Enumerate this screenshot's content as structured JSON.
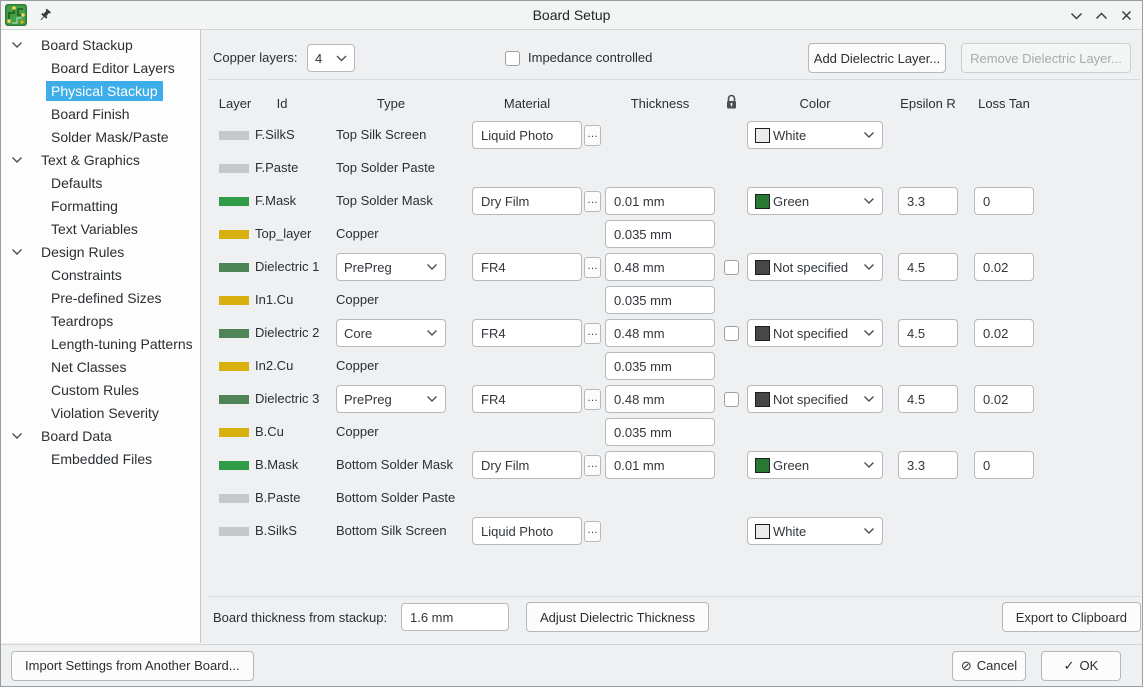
{
  "window": {
    "title": "Board Setup"
  },
  "sidebar": {
    "items": [
      {
        "label": "Board Stackup",
        "level": 0,
        "selected": false
      },
      {
        "label": "Board Editor Layers",
        "level": 1,
        "selected": false
      },
      {
        "label": "Physical Stackup",
        "level": 1,
        "selected": true
      },
      {
        "label": "Board Finish",
        "level": 1,
        "selected": false
      },
      {
        "label": "Solder Mask/Paste",
        "level": 1,
        "selected": false
      },
      {
        "label": "Text & Graphics",
        "level": 0,
        "selected": false
      },
      {
        "label": "Defaults",
        "level": 1,
        "selected": false
      },
      {
        "label": "Formatting",
        "level": 1,
        "selected": false
      },
      {
        "label": "Text Variables",
        "level": 1,
        "selected": false
      },
      {
        "label": "Design Rules",
        "level": 0,
        "selected": false
      },
      {
        "label": "Constraints",
        "level": 1,
        "selected": false
      },
      {
        "label": "Pre-defined Sizes",
        "level": 1,
        "selected": false
      },
      {
        "label": "Teardrops",
        "level": 1,
        "selected": false
      },
      {
        "label": "Length-tuning Patterns",
        "level": 1,
        "selected": false
      },
      {
        "label": "Net Classes",
        "level": 1,
        "selected": false
      },
      {
        "label": "Custom Rules",
        "level": 1,
        "selected": false
      },
      {
        "label": "Violation Severity",
        "level": 1,
        "selected": false
      },
      {
        "label": "Board Data",
        "level": 0,
        "selected": false
      },
      {
        "label": "Embedded Files",
        "level": 1,
        "selected": false
      }
    ]
  },
  "toolbar": {
    "copper_layers_label": "Copper layers:",
    "copper_layers_value": "4",
    "impedance_label": "Impedance controlled",
    "impedance_checked": false,
    "add_button": "Add Dielectric Layer...",
    "remove_button": "Remove Dielectric Layer...",
    "remove_enabled": false
  },
  "table": {
    "headers": {
      "layer": "Layer",
      "id": "Id",
      "type": "Type",
      "material": "Material",
      "thickness": "Thickness",
      "lock": "lock-icon",
      "color": "Color",
      "epsilon": "Epsilon R",
      "loss_tan": "Loss Tan"
    },
    "rows": [
      {
        "id": "F.SilkS",
        "swatch": "silver",
        "type": "Top Silk Screen",
        "type_select": false,
        "material": "Liquid Photo",
        "thickness": null,
        "lock": false,
        "color": {
          "name": "White",
          "swatch": "#e9ebec"
        },
        "epsilon": null,
        "loss": null
      },
      {
        "id": "F.Paste",
        "swatch": "silver",
        "type": "Top Solder Paste",
        "type_select": false,
        "material": null,
        "thickness": null,
        "lock": false,
        "color": null,
        "epsilon": null,
        "loss": null
      },
      {
        "id": "F.Mask",
        "swatch": "green",
        "type": "Top Solder Mask",
        "type_select": false,
        "material": "Dry Film",
        "thickness": "0.01 mm",
        "lock": false,
        "color": {
          "name": "Green",
          "swatch": "#287a33"
        },
        "epsilon": "3.3",
        "loss": "0"
      },
      {
        "id": "Top_layer",
        "swatch": "copper",
        "type": "Copper",
        "type_select": false,
        "material": null,
        "thickness": "0.035 mm",
        "lock": false,
        "color": null,
        "epsilon": null,
        "loss": null
      },
      {
        "id": "Dielectric 1",
        "swatch": "dielectric",
        "type": "PrePreg",
        "type_select": true,
        "material": "FR4",
        "thickness": "0.48 mm",
        "lock": true,
        "color": {
          "name": "Not specified",
          "swatch": "#474747"
        },
        "epsilon": "4.5",
        "loss": "0.02"
      },
      {
        "id": "In1.Cu",
        "swatch": "copper",
        "type": "Copper",
        "type_select": false,
        "material": null,
        "thickness": "0.035 mm",
        "lock": false,
        "color": null,
        "epsilon": null,
        "loss": null
      },
      {
        "id": "Dielectric 2",
        "swatch": "dielectric",
        "type": "Core",
        "type_select": true,
        "material": "FR4",
        "thickness": "0.48 mm",
        "lock": true,
        "color": {
          "name": "Not specified",
          "swatch": "#474747"
        },
        "epsilon": "4.5",
        "loss": "0.02"
      },
      {
        "id": "In2.Cu",
        "swatch": "copper",
        "type": "Copper",
        "type_select": false,
        "material": null,
        "thickness": "0.035 mm",
        "lock": false,
        "color": null,
        "epsilon": null,
        "loss": null
      },
      {
        "id": "Dielectric 3",
        "swatch": "dielectric",
        "type": "PrePreg",
        "type_select": true,
        "material": "FR4",
        "thickness": "0.48 mm",
        "lock": true,
        "color": {
          "name": "Not specified",
          "swatch": "#474747"
        },
        "epsilon": "4.5",
        "loss": "0.02"
      },
      {
        "id": "B.Cu",
        "swatch": "copper",
        "type": "Copper",
        "type_select": false,
        "material": null,
        "thickness": "0.035 mm",
        "lock": false,
        "color": null,
        "epsilon": null,
        "loss": null
      },
      {
        "id": "B.Mask",
        "swatch": "green",
        "type": "Bottom Solder Mask",
        "type_select": false,
        "material": "Dry Film",
        "thickness": "0.01 mm",
        "lock": false,
        "color": {
          "name": "Green",
          "swatch": "#287a33"
        },
        "epsilon": "3.3",
        "loss": "0"
      },
      {
        "id": "B.Paste",
        "swatch": "silver",
        "type": "Bottom Solder Paste",
        "type_select": false,
        "material": null,
        "thickness": null,
        "lock": false,
        "color": null,
        "epsilon": null,
        "loss": null
      },
      {
        "id": "B.SilkS",
        "swatch": "silver",
        "type": "Bottom Silk Screen",
        "type_select": false,
        "material": "Liquid Photo",
        "thickness": null,
        "lock": false,
        "color": {
          "name": "White",
          "swatch": "#e9ebec"
        },
        "epsilon": null,
        "loss": null
      }
    ]
  },
  "footer": {
    "board_thickness_label": "Board thickness from stackup:",
    "board_thickness_value": "1.6 mm",
    "adjust_button": "Adjust Dielectric Thickness",
    "export_button": "Export to Clipboard"
  },
  "dialog": {
    "import_button": "Import Settings from Another Board...",
    "cancel_button": "Cancel",
    "ok_button": "OK"
  },
  "colors": {
    "accent": "#3daee9",
    "swatch_silver": "#c6c8c9",
    "swatch_green": "#2f9c49",
    "swatch_copper": "#d9b10f",
    "swatch_dielectric": "#4f8556"
  }
}
